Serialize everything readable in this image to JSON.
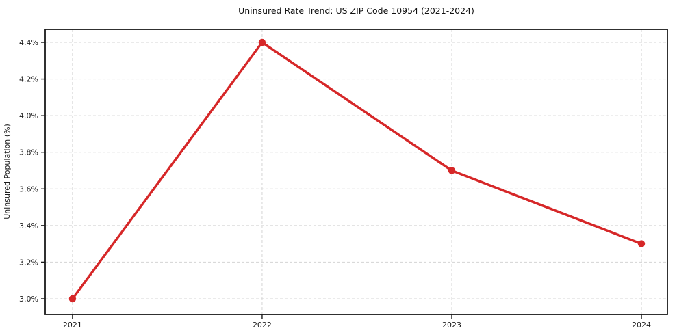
{
  "chart_data": {
    "type": "line",
    "title": "Uninsured Rate Trend: US ZIP Code 10954 (2021-2024)",
    "xlabel": "",
    "ylabel": "Uninsured Population (%)",
    "x": [
      2021,
      2022,
      2023,
      2024
    ],
    "values": [
      3.0,
      4.4,
      3.7,
      3.3
    ],
    "series_name": "Uninsured rate",
    "xticks": [
      {
        "value": 2021,
        "label": "2021"
      },
      {
        "value": 2022,
        "label": "2022"
      },
      {
        "value": 2023,
        "label": "2023"
      },
      {
        "value": 2024,
        "label": "2024"
      }
    ],
    "yticks": [
      {
        "value": 3.0,
        "label": "3.0%"
      },
      {
        "value": 3.2,
        "label": "3.2%"
      },
      {
        "value": 3.4,
        "label": "3.4%"
      },
      {
        "value": 3.6,
        "label": "3.6%"
      },
      {
        "value": 3.8,
        "label": "3.8%"
      },
      {
        "value": 4.0,
        "label": "4.0%"
      },
      {
        "value": 4.2,
        "label": "4.2%"
      },
      {
        "value": 4.4,
        "label": "4.4%"
      }
    ],
    "xlim": [
      2020.856,
      2024.137
    ],
    "ylim": [
      2.914,
      4.471
    ],
    "grid": true,
    "legend": false,
    "line_color": "#d62728",
    "grid_color": "#d4d4d4",
    "spine_color": "#1a1a1a",
    "background_color": "#ffffff"
  }
}
